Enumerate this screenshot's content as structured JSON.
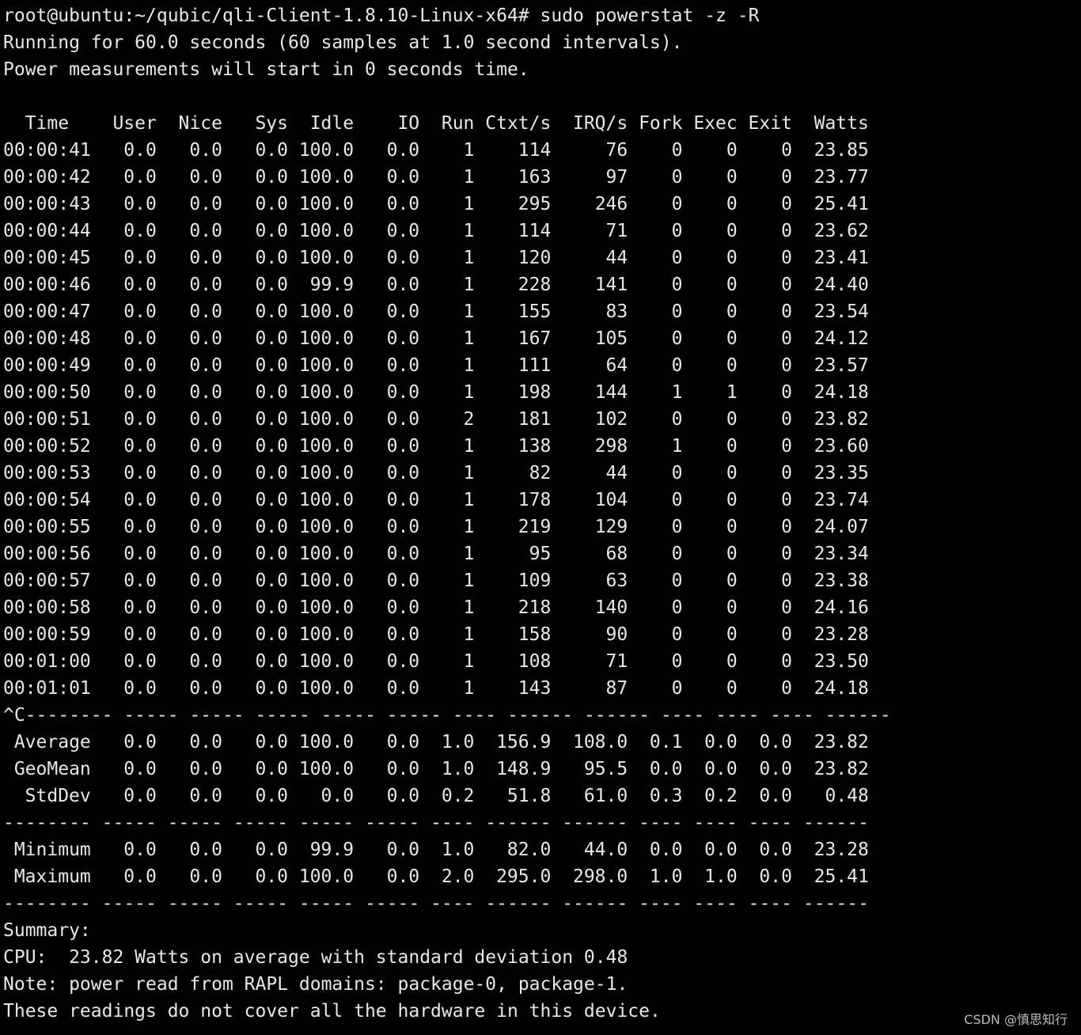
{
  "terminal": {
    "prompt": "root@ubuntu:~/qubic/qli-Client-1.8.10-Linux-x64# sudo powerstat -z -R",
    "intro": [
      "Running for 60.0 seconds (60 samples at 1.0 second intervals).",
      "Power measurements will start in 0 seconds time."
    ],
    "columns": [
      "Time",
      "User",
      "Nice",
      "Sys",
      "Idle",
      "IO",
      "Run",
      "Ctxt/s",
      "IRQ/s",
      "Fork",
      "Exec",
      "Exit",
      "Watts"
    ],
    "rows": [
      [
        "00:00:41",
        "0.0",
        "0.0",
        "0.0",
        "100.0",
        "0.0",
        "1",
        "114",
        "76",
        "0",
        "0",
        "0",
        "23.85"
      ],
      [
        "00:00:42",
        "0.0",
        "0.0",
        "0.0",
        "100.0",
        "0.0",
        "1",
        "163",
        "97",
        "0",
        "0",
        "0",
        "23.77"
      ],
      [
        "00:00:43",
        "0.0",
        "0.0",
        "0.0",
        "100.0",
        "0.0",
        "1",
        "295",
        "246",
        "0",
        "0",
        "0",
        "25.41"
      ],
      [
        "00:00:44",
        "0.0",
        "0.0",
        "0.0",
        "100.0",
        "0.0",
        "1",
        "114",
        "71",
        "0",
        "0",
        "0",
        "23.62"
      ],
      [
        "00:00:45",
        "0.0",
        "0.0",
        "0.0",
        "100.0",
        "0.0",
        "1",
        "120",
        "44",
        "0",
        "0",
        "0",
        "23.41"
      ],
      [
        "00:00:46",
        "0.0",
        "0.0",
        "0.0",
        "99.9",
        "0.0",
        "1",
        "228",
        "141",
        "0",
        "0",
        "0",
        "24.40"
      ],
      [
        "00:00:47",
        "0.0",
        "0.0",
        "0.0",
        "100.0",
        "0.0",
        "1",
        "155",
        "83",
        "0",
        "0",
        "0",
        "23.54"
      ],
      [
        "00:00:48",
        "0.0",
        "0.0",
        "0.0",
        "100.0",
        "0.0",
        "1",
        "167",
        "105",
        "0",
        "0",
        "0",
        "24.12"
      ],
      [
        "00:00:49",
        "0.0",
        "0.0",
        "0.0",
        "100.0",
        "0.0",
        "1",
        "111",
        "64",
        "0",
        "0",
        "0",
        "23.57"
      ],
      [
        "00:00:50",
        "0.0",
        "0.0",
        "0.0",
        "100.0",
        "0.0",
        "1",
        "198",
        "144",
        "1",
        "1",
        "0",
        "24.18"
      ],
      [
        "00:00:51",
        "0.0",
        "0.0",
        "0.0",
        "100.0",
        "0.0",
        "2",
        "181",
        "102",
        "0",
        "0",
        "0",
        "23.82"
      ],
      [
        "00:00:52",
        "0.0",
        "0.0",
        "0.0",
        "100.0",
        "0.0",
        "1",
        "138",
        "298",
        "1",
        "0",
        "0",
        "23.60"
      ],
      [
        "00:00:53",
        "0.0",
        "0.0",
        "0.0",
        "100.0",
        "0.0",
        "1",
        "82",
        "44",
        "0",
        "0",
        "0",
        "23.35"
      ],
      [
        "00:00:54",
        "0.0",
        "0.0",
        "0.0",
        "100.0",
        "0.0",
        "1",
        "178",
        "104",
        "0",
        "0",
        "0",
        "23.74"
      ],
      [
        "00:00:55",
        "0.0",
        "0.0",
        "0.0",
        "100.0",
        "0.0",
        "1",
        "219",
        "129",
        "0",
        "0",
        "0",
        "24.07"
      ],
      [
        "00:00:56",
        "0.0",
        "0.0",
        "0.0",
        "100.0",
        "0.0",
        "1",
        "95",
        "68",
        "0",
        "0",
        "0",
        "23.34"
      ],
      [
        "00:00:57",
        "0.0",
        "0.0",
        "0.0",
        "100.0",
        "0.0",
        "1",
        "109",
        "63",
        "0",
        "0",
        "0",
        "23.38"
      ],
      [
        "00:00:58",
        "0.0",
        "0.0",
        "0.0",
        "100.0",
        "0.0",
        "1",
        "218",
        "140",
        "0",
        "0",
        "0",
        "24.16"
      ],
      [
        "00:00:59",
        "0.0",
        "0.0",
        "0.0",
        "100.0",
        "0.0",
        "1",
        "158",
        "90",
        "0",
        "0",
        "0",
        "23.28"
      ],
      [
        "00:01:00",
        "0.0",
        "0.0",
        "0.0",
        "100.0",
        "0.0",
        "1",
        "108",
        "71",
        "0",
        "0",
        "0",
        "23.50"
      ],
      [
        "00:01:01",
        "0.0",
        "0.0",
        "0.0",
        "100.0",
        "0.0",
        "1",
        "143",
        "87",
        "0",
        "0",
        "0",
        "24.18"
      ]
    ],
    "separator_interrupt": "^C-------- ----- ----- ----- ----- ----- ---- ------ ------ ---- ---- ---- ------",
    "separator": "-------- ----- ----- ----- ----- ----- ---- ------ ------ ---- ---- ---- ------",
    "stats_a": [
      [
        "Average",
        "0.0",
        "0.0",
        "0.0",
        "100.0",
        "0.0",
        "1.0",
        "156.9",
        "108.0",
        "0.1",
        "0.0",
        "0.0",
        "23.82"
      ],
      [
        "GeoMean",
        "0.0",
        "0.0",
        "0.0",
        "100.0",
        "0.0",
        "1.0",
        "148.9",
        "95.5",
        "0.0",
        "0.0",
        "0.0",
        "23.82"
      ],
      [
        "StdDev",
        "0.0",
        "0.0",
        "0.0",
        "0.0",
        "0.0",
        "0.2",
        "51.8",
        "61.0",
        "0.3",
        "0.2",
        "0.0",
        "0.48"
      ]
    ],
    "stats_b": [
      [
        "Minimum",
        "0.0",
        "0.0",
        "0.0",
        "99.9",
        "0.0",
        "1.0",
        "82.0",
        "44.0",
        "0.0",
        "0.0",
        "0.0",
        "23.28"
      ],
      [
        "Maximum",
        "0.0",
        "0.0",
        "0.0",
        "100.0",
        "0.0",
        "2.0",
        "295.0",
        "298.0",
        "1.0",
        "1.0",
        "0.0",
        "25.41"
      ]
    ],
    "summary": [
      "Summary:",
      "CPU:  23.82 Watts on average with standard deviation 0.48",
      "Note: power read from RAPL domains: package-0, package-1.",
      "These readings do not cover all the hardware in this device."
    ]
  },
  "watermark": "CSDN @慎思知行",
  "colors": {
    "background": "#000000",
    "text": "#e8e8e8"
  }
}
